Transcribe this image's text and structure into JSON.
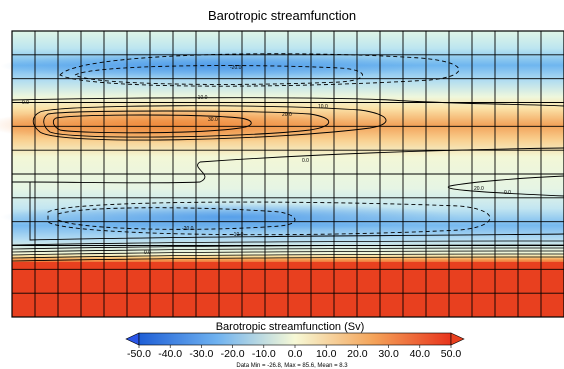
{
  "chart_data": {
    "type": "heatmap",
    "title": "Barotropic streamfunction",
    "colorbar_label": "Barotropic streamfunction (Sv)",
    "colorbar_ticks": [
      "-50.0",
      "-40.0",
      "-30.0",
      "-20.0",
      "-10.0",
      "0.0",
      "10.0",
      "20.0",
      "30.0",
      "40.0",
      "50.0"
    ],
    "colorbar_range": [
      -50,
      50
    ],
    "colorbar_extend": "both",
    "stats": "Data Min = -26.8, Max = 85.6, Mean = 8.3",
    "data_min": -26.8,
    "data_max": 85.6,
    "data_mean": 8.3,
    "contour_levels": [
      -20,
      -10,
      0,
      10,
      20,
      30
    ],
    "contour_labels": [
      "-20.0",
      "-10.0",
      "0.0",
      "10.0",
      "20.0",
      "30.0",
      "0.0",
      "20.0",
      "0.0",
      "-20.0",
      "-10.0",
      "0.0"
    ],
    "grid_columns": 24,
    "grid_rows": 12,
    "colors": {
      "negative_max": "#1f5fd6",
      "zero": "#f7f9d6",
      "positive_max": "#e8341c",
      "land_band": "#e8401f",
      "arrow_left": "#2a55e6",
      "arrow_right": "#e8401f"
    }
  }
}
